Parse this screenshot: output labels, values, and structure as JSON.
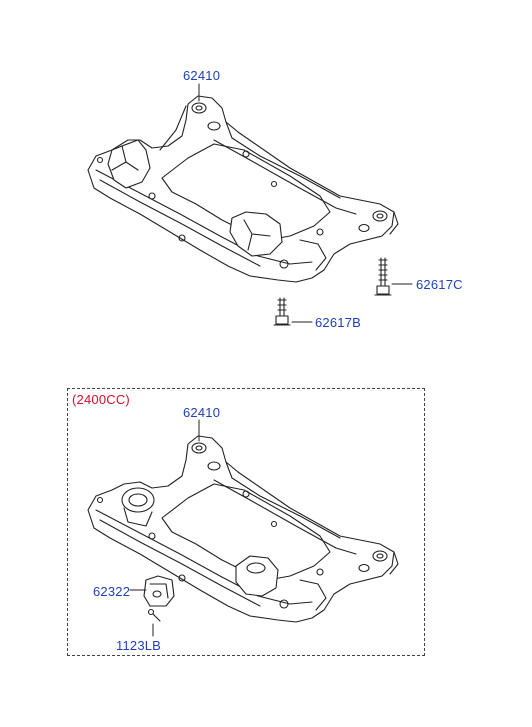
{
  "diagram": {
    "parts": {
      "top_crossmember": "62410",
      "top_bolt_right": "62617C",
      "top_bolt_bottom": "62617B",
      "box_title": "(2400CC)",
      "box_crossmember": "62410",
      "box_bracket": "62322",
      "box_bolt": "1123LB"
    },
    "colors": {
      "label": "#1f3fb8",
      "title": "#d4102c",
      "line": "#222222"
    }
  }
}
